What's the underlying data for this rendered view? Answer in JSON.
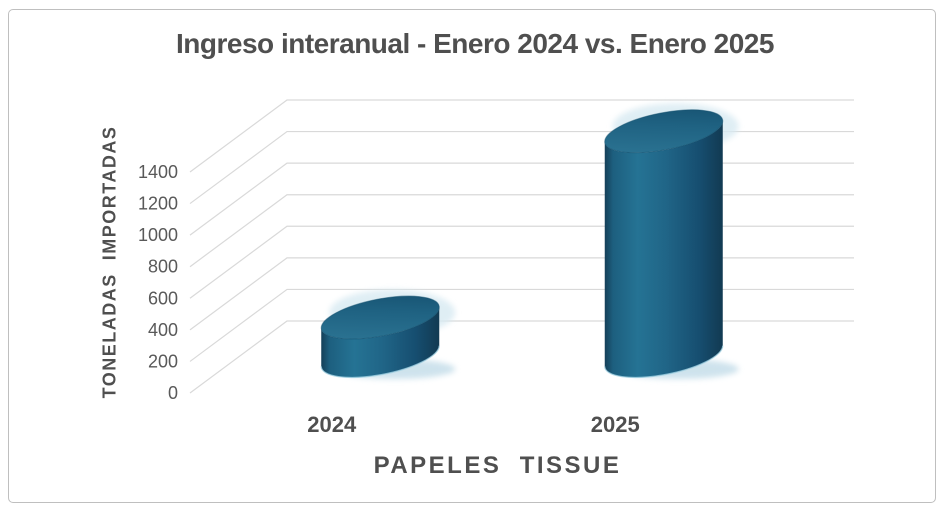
{
  "window": {
    "background": "#ffffff",
    "border_color": "#bfbfbf"
  },
  "chart_data": {
    "type": "bar",
    "subtype": "3d-cylinder",
    "title": "Ingreso interanual - Enero 2024 vs. Enero 2025",
    "categories": [
      "2024",
      "2025"
    ],
    "values": [
      250,
      1430
    ],
    "xlabel": "PAPELES  TISSUE",
    "ylabel": "TONELADAS  IMPORTADAS",
    "yticks": [
      0,
      200,
      400,
      600,
      800,
      1000,
      1200,
      1400
    ],
    "ylim": [
      0,
      1450
    ],
    "grid": true,
    "legend": false,
    "series_color": "#1f6787",
    "gridline_color": "#d9d9d9",
    "text_color": "#595959",
    "title_color": "#4f4f4f",
    "shadow_color": "#c9e0eb"
  }
}
